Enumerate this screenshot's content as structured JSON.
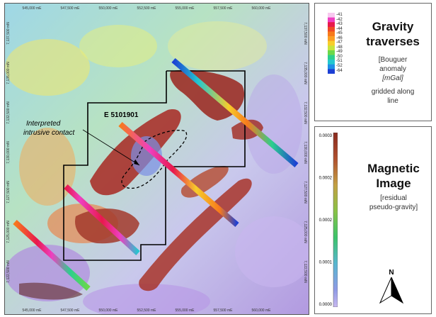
{
  "map": {
    "top_ticks": [
      "545,000 mE",
      "547,500 mE",
      "550,000 mE",
      "552,500 mE",
      "555,000 mE",
      "557,500 mE",
      "560,000 mE"
    ],
    "bottom_ticks": [
      "545,000 mE",
      "547,500 mE",
      "550,000 mE",
      "552,500 mE",
      "555,000 mE",
      "557,500 mE",
      "560,000 mE"
    ],
    "left_ticks": [
      "7,137,500 mN",
      "7,135,000 mN",
      "7,132,500 mN",
      "7,130,000 mN",
      "7,127,500 mN",
      "7,125,000 mN",
      "7,122,500 mN"
    ],
    "right_ticks": [
      "7,137,500 mN",
      "7,135,000 mN",
      "7,132,500 mN",
      "7,130,000 mN",
      "7,127,500 mN",
      "7,125,000 mN",
      "7,122,500 mN"
    ],
    "hole_label": "E  5101901",
    "annotation_line1": "Interpreted",
    "annotation_line2": "intrusive contact"
  },
  "gravity_legend": {
    "title_line1": "Gravity",
    "title_line2": "traverses",
    "sub_line1": "[Bouguer",
    "sub_line2": "anomaly",
    "sub_line3": "[mGal]",
    "sub_line4": "gridded along",
    "sub_line5": "line",
    "scale_values": [
      "-41",
      "-42",
      "-43",
      "-44",
      "-45",
      "-46",
      "-47",
      "-48",
      "-49",
      "-50",
      "-51",
      "-52",
      "-64"
    ],
    "scale_colors": [
      "#f7c8ef",
      "#ee3fc1",
      "#e8194c",
      "#ef4a26",
      "#f77a1c",
      "#fb9e24",
      "#f7cd2b",
      "#c8e43c",
      "#6cd84a",
      "#2ccf8e",
      "#23c7cf",
      "#1f8fe6",
      "#1c3fd4"
    ]
  },
  "magnetic_legend": {
    "title_line1": "Magnetic",
    "title_line2": "Image",
    "sub_line1": "[residual",
    "sub_line2": "pseudo-gravity]",
    "scale_values": [
      "0.0003",
      "0.0002",
      "0.0002",
      "0.0001",
      "0.0000"
    ],
    "north_label": "N"
  }
}
